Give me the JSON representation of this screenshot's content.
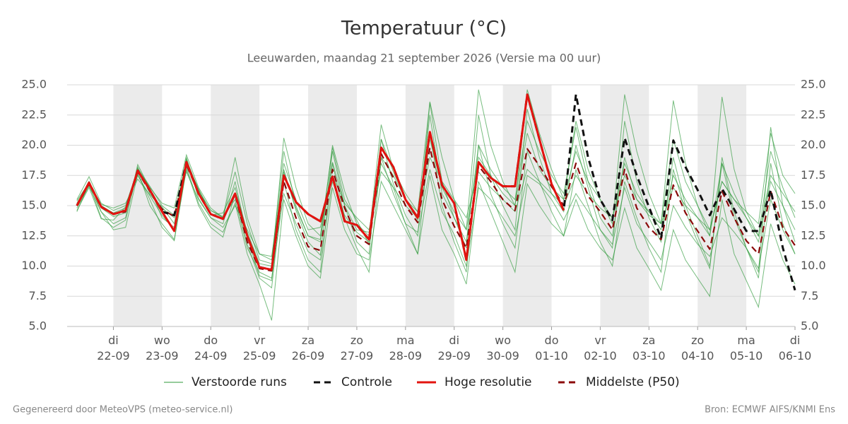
{
  "chart_data": {
    "type": "line",
    "title": "Temperatuur (°C)",
    "subtitle": "Leeuwarden, maandag 21 september 2026 (Versie ma 00 uur)",
    "source_left": "Gegenereerd door MeteoVPS (meteo-service.nl)",
    "source_right": "Bron: ECMWF AIFS/KNMI Ens",
    "grid": true,
    "ylim": [
      5,
      25
    ],
    "yticks": [
      {
        "value": 5,
        "label": "5.0"
      },
      {
        "value": 7.5,
        "label": "7.5"
      },
      {
        "value": 10,
        "label": "10.0"
      },
      {
        "value": 12.5,
        "label": "12.5"
      },
      {
        "value": 15,
        "label": "15.0"
      },
      {
        "value": 17.5,
        "label": "17.5"
      },
      {
        "value": 20,
        "label": "20.0"
      },
      {
        "value": 22.5,
        "label": "22.5"
      },
      {
        "value": 25,
        "label": "25.0"
      }
    ],
    "xlim": [
      0.05,
      15
    ],
    "xticks": [
      {
        "value": 1,
        "label": "di\n22-09"
      },
      {
        "value": 2,
        "label": "wo\n23-09"
      },
      {
        "value": 3,
        "label": "do\n24-09"
      },
      {
        "value": 4,
        "label": "vr\n25-09"
      },
      {
        "value": 5,
        "label": "za\n26-09"
      },
      {
        "value": 6,
        "label": "zo\n27-09"
      },
      {
        "value": 7,
        "label": "ma\n28-09"
      },
      {
        "value": 8,
        "label": "di\n29-09"
      },
      {
        "value": 9,
        "label": "wo\n30-09"
      },
      {
        "value": 10,
        "label": "do\n01-10"
      },
      {
        "value": 11,
        "label": "vr\n02-10"
      },
      {
        "value": 12,
        "label": "za\n03-10"
      },
      {
        "value": 13,
        "label": "zo\n04-10"
      },
      {
        "value": 14,
        "label": "ma\n05-10"
      },
      {
        "value": 15,
        "label": "di\n06-10"
      }
    ],
    "x": [
      0.25,
      0.5,
      0.75,
      1,
      1.25,
      1.5,
      1.75,
      2,
      2.25,
      2.5,
      2.75,
      3,
      3.25,
      3.5,
      3.75,
      4,
      4.25,
      4.5,
      4.75,
      5,
      5.25,
      5.5,
      5.75,
      6,
      6.25,
      6.5,
      6.75,
      7,
      7.25,
      7.5,
      7.75,
      8,
      8.25,
      8.5,
      8.75,
      9,
      9.25,
      9.5,
      9.75,
      10,
      10.25,
      10.5,
      10.75,
      11,
      11.25,
      11.5,
      11.75,
      12,
      12.25,
      12.5,
      12.75,
      13,
      13.25,
      13.5,
      13.75,
      14,
      14.25,
      14.5,
      14.75,
      15
    ],
    "ensemble": {
      "name": "Verstoorde runs",
      "color": "#2e9a3a",
      "members": [
        [
          15.2,
          17.0,
          14.8,
          14.1,
          14.4,
          18.2,
          16.0,
          14.9,
          13.5,
          19.0,
          15.6,
          14.0,
          13.5,
          17.0,
          12.4,
          9.2,
          8.8,
          18.0,
          14.6,
          12.0,
          10.9,
          19.5,
          15.0,
          12.0,
          11.0,
          20.5,
          16.8,
          14.2,
          12.5,
          23.5,
          17.0,
          14.0,
          11.5,
          22.5,
          17.5,
          15.0,
          13.0,
          23.0,
          19.0,
          16.0,
          14.5,
          20.0,
          16.5,
          13.0,
          11.5,
          22.0,
          17.0,
          14.0,
          12.0,
          19.0,
          15.0,
          12.5,
          10.0,
          18.5,
          14.0,
          11.5,
          9.5,
          21.5,
          15.0,
          12.0
        ],
        [
          14.6,
          16.5,
          13.9,
          13.8,
          14.9,
          17.5,
          15.8,
          14.2,
          13.0,
          18.8,
          16.2,
          14.6,
          14.1,
          15.5,
          11.5,
          9.5,
          9.0,
          16.0,
          13.5,
          11.2,
          10.5,
          17.0,
          14.2,
          12.8,
          12.0,
          18.5,
          16.5,
          13.5,
          12.8,
          18.0,
          14.5,
          12.6,
          10.0,
          16.5,
          15.5,
          14.0,
          12.5,
          17.5,
          16.8,
          15.5,
          13.8,
          16.0,
          14.5,
          13.0,
          11.8,
          16.5,
          13.5,
          12.0,
          10.5,
          15.0,
          13.2,
          11.8,
          10.8,
          14.0,
          12.8,
          11.5,
          9.8,
          15.5,
          13.0,
          11.0
        ],
        [
          15.5,
          17.4,
          15.2,
          14.6,
          15.0,
          18.0,
          16.5,
          15.2,
          14.8,
          19.2,
          16.5,
          14.8,
          14.0,
          19.0,
          14.0,
          11.0,
          10.5,
          19.5,
          15.0,
          12.5,
          12.0,
          20.0,
          16.2,
          13.5,
          12.5,
          21.7,
          18.0,
          16.0,
          14.5,
          23.6,
          19.0,
          15.5,
          13.0,
          24.6,
          20.0,
          17.0,
          15.0,
          24.6,
          21.0,
          18.0,
          15.5,
          22.0,
          18.0,
          15.5,
          13.5,
          24.2,
          19.5,
          16.0,
          13.5,
          23.7,
          18.5,
          15.0,
          12.5,
          24.0,
          18.0,
          14.5,
          12.5,
          19.5,
          16.5,
          14.0
        ],
        [
          14.8,
          16.6,
          14.5,
          13.0,
          13.2,
          17.6,
          15.5,
          13.2,
          12.1,
          18.2,
          15.2,
          13.5,
          12.8,
          15.2,
          11.0,
          8.5,
          5.5,
          15.5,
          12.5,
          10.0,
          9.0,
          16.5,
          13.0,
          11.0,
          10.5,
          17.0,
          15.0,
          13.0,
          11.0,
          17.5,
          13.0,
          11.0,
          8.5,
          17.0,
          14.5,
          12.0,
          9.5,
          16.8,
          15.0,
          13.5,
          12.5,
          15.5,
          13.0,
          11.5,
          10.5,
          14.8,
          11.5,
          9.8,
          8.0,
          13.0,
          10.5,
          9.0,
          7.5,
          15.5,
          11.0,
          8.8,
          6.6,
          13.5,
          10.5,
          8.5
        ],
        [
          15.0,
          17.0,
          14.5,
          13.5,
          14.0,
          18.4,
          16.4,
          14.0,
          13.2,
          18.5,
          16.4,
          14.2,
          14.4,
          16.5,
          12.8,
          10.2,
          10.0,
          20.6,
          16.5,
          13.5,
          12.5,
          19.8,
          15.5,
          13.8,
          11.8,
          20.5,
          17.8,
          15.5,
          13.8,
          22.5,
          16.0,
          14.0,
          12.0,
          20.0,
          18.0,
          16.5,
          15.5,
          22.0,
          19.5,
          17.5,
          16.0,
          21.5,
          17.0,
          14.0,
          12.5,
          19.0,
          15.5,
          14.5,
          13.0,
          17.5,
          15.5,
          14.0,
          12.5,
          18.5,
          16.0,
          14.0,
          12.0,
          17.0,
          15.0,
          13.0
        ],
        [
          15.4,
          16.9,
          15.1,
          14.8,
          15.2,
          17.2,
          15.9,
          14.8,
          14.0,
          17.8,
          15.5,
          14.0,
          13.2,
          15.0,
          13.0,
          11.0,
          10.8,
          17.8,
          14.8,
          12.5,
          12.2,
          18.6,
          15.0,
          13.0,
          12.8,
          19.0,
          17.5,
          15.5,
          14.5,
          20.5,
          16.5,
          14.5,
          13.0,
          19.0,
          17.5,
          16.0,
          15.0,
          21.0,
          18.0,
          16.5,
          15.5,
          19.5,
          17.0,
          15.5,
          14.0,
          18.5,
          16.0,
          14.5,
          13.5,
          20.5,
          17.0,
          15.0,
          13.0,
          17.0,
          15.5,
          14.0,
          12.5,
          17.5,
          16.0,
          14.5
        ],
        [
          14.5,
          16.8,
          14.0,
          13.2,
          13.8,
          17.9,
          15.0,
          13.5,
          12.2,
          18.0,
          15.0,
          13.2,
          12.4,
          16.0,
          11.8,
          9.0,
          8.2,
          17.0,
          13.0,
          10.5,
          9.5,
          18.5,
          14.0,
          11.5,
          9.5,
          19.0,
          16.0,
          13.5,
          11.0,
          21.0,
          15.0,
          12.0,
          9.5,
          20.0,
          16.0,
          13.5,
          11.5,
          19.5,
          17.0,
          14.5,
          12.5,
          18.0,
          15.0,
          12.0,
          10.0,
          17.0,
          14.0,
          11.5,
          9.5,
          18.0,
          14.5,
          12.0,
          9.8,
          19.0,
          14.5,
          11.5,
          9.0,
          18.5,
          13.5,
          11.0
        ],
        [
          15.1,
          16.7,
          15.0,
          14.4,
          14.8,
          18.1,
          16.6,
          15.0,
          14.2,
          18.8,
          16.3,
          14.6,
          14.0,
          17.8,
          13.5,
          10.5,
          10.2,
          18.5,
          15.5,
          13.0,
          13.2,
          17.5,
          15.2,
          14.0,
          13.0,
          17.8,
          16.5,
          15.0,
          14.0,
          19.0,
          17.0,
          15.5,
          14.0,
          17.8,
          16.5,
          15.5,
          14.5,
          18.0,
          17.0,
          16.0,
          15.0,
          17.5,
          16.0,
          14.8,
          14.0,
          17.5,
          15.5,
          14.2,
          13.5,
          16.5,
          15.0,
          14.0,
          13.0,
          17.0,
          15.5,
          14.5,
          13.5,
          21.0,
          17.5,
          16.0
        ]
      ]
    },
    "series": [
      {
        "name": "Controle",
        "color": "#111111",
        "style": "dashed",
        "values": [
          15.0,
          16.9,
          14.9,
          14.3,
          14.6,
          17.9,
          16.3,
          14.5,
          14.2,
          18.6,
          16.0,
          14.3,
          13.9,
          16.0,
          12.5,
          9.9,
          9.7,
          17.5,
          15.3,
          14.3,
          13.7,
          17.4,
          13.7,
          13.4,
          12.2,
          19.8,
          18.2,
          15.5,
          14.0,
          21.1,
          16.7,
          15.2,
          10.5,
          18.6,
          17.3,
          16.6,
          16.6,
          24.2,
          20.5,
          16.8,
          14.6,
          24.2,
          19.0,
          15.5,
          13.8,
          20.6,
          17.5,
          14.9,
          12.3,
          20.4,
          18.2,
          16.3,
          14.2,
          16.4,
          14.7,
          12.9,
          12.9,
          16.3,
          11.5,
          8.0
        ]
      },
      {
        "name": "Hoge resolutie",
        "color": "#e3130f",
        "style": "solid",
        "values": [
          15.0,
          16.9,
          14.9,
          14.3,
          14.6,
          17.9,
          16.3,
          14.5,
          12.9,
          18.6,
          16.0,
          14.3,
          13.9,
          16.0,
          12.5,
          9.9,
          9.7,
          17.5,
          15.3,
          14.3,
          13.7,
          17.4,
          13.7,
          13.4,
          12.2,
          19.8,
          18.2,
          15.5,
          14.0,
          21.1,
          16.7,
          15.2,
          10.5,
          18.6,
          17.3,
          16.6,
          16.6,
          24.2,
          20.5,
          16.8,
          14.6,
          null,
          null,
          null,
          null,
          null,
          null,
          null,
          null,
          null,
          null,
          null,
          null,
          null,
          null,
          null,
          null,
          null,
          null,
          null
        ]
      },
      {
        "name": "Middelste (P50)",
        "color": "#8b0a0a",
        "style": "dashed",
        "values": [
          15.0,
          16.8,
          14.9,
          14.3,
          14.5,
          17.8,
          16.2,
          14.7,
          14.1,
          18.4,
          16.0,
          14.3,
          13.9,
          15.9,
          12.0,
          9.8,
          9.6,
          17.0,
          14.0,
          11.6,
          11.3,
          18.0,
          14.8,
          12.5,
          11.8,
          19.3,
          17.3,
          15.0,
          13.6,
          19.8,
          15.5,
          13.3,
          11.5,
          18.3,
          17.0,
          15.5,
          14.6,
          19.7,
          18.3,
          16.6,
          15.0,
          18.5,
          15.8,
          14.5,
          13.0,
          18.0,
          14.8,
          13.2,
          12.2,
          16.7,
          14.4,
          12.9,
          11.4,
          16.2,
          14.0,
          12.1,
          11.0,
          16.2,
          13.2,
          11.7
        ]
      }
    ]
  }
}
